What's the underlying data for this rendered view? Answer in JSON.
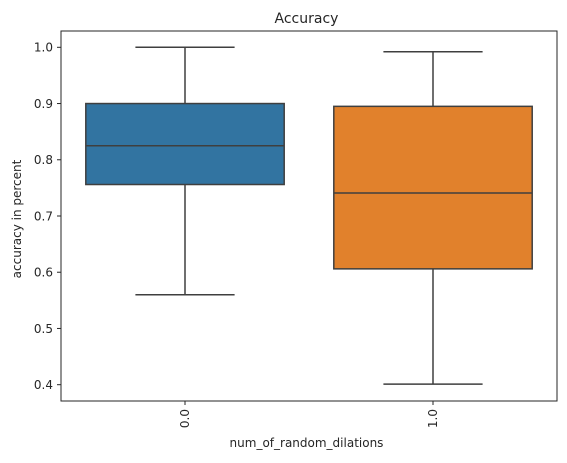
{
  "chart_data": {
    "type": "box",
    "title": "Accuracy",
    "xlabel": "num_of_random_dilations",
    "ylabel": "accuracy in percent",
    "categories": [
      "0.0",
      "1.0"
    ],
    "boxes": [
      {
        "category": "0.0",
        "whisker_low": 0.56,
        "q1": 0.756,
        "median": 0.825,
        "q3": 0.9,
        "whisker_high": 1.0,
        "color": "#3274a1"
      },
      {
        "category": "1.0",
        "whisker_low": 0.401,
        "q1": 0.606,
        "median": 0.741,
        "q3": 0.895,
        "whisker_high": 0.992,
        "color": "#e1812c"
      }
    ],
    "yticks": [
      "0.4",
      "0.5",
      "0.6",
      "0.7",
      "0.8",
      "0.9",
      "1.0"
    ],
    "ylim": [
      0.371,
      1.029
    ],
    "grid": false,
    "line_color": "#3f3f3f"
  }
}
